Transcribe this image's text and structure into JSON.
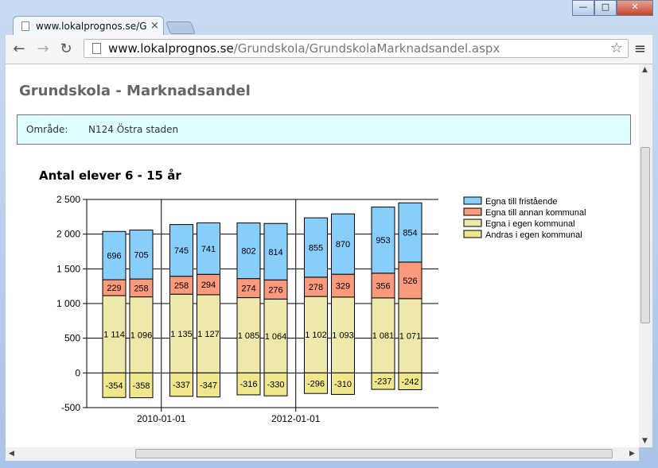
{
  "browser": {
    "tab_title": "www.lokalprognos.se/Gru",
    "tab_close": "×",
    "win_minimize": "—",
    "win_maximize": "□",
    "win_close": "✕",
    "back_icon": "←",
    "forward_icon": "→",
    "reload_icon": "↻",
    "url_host": "www.lokalprognos.se",
    "url_path": "/Grundskola/GrundskolaMarknadsandel.aspx",
    "star_icon": "☆",
    "menu_icon": "≡"
  },
  "page": {
    "title": "Grundskola - Marknadsandel",
    "area_label": "Område:",
    "area_value": "N124 Östra staden"
  },
  "chart_data": {
    "type": "bar",
    "stacked": true,
    "title": "Antal elever 6 - 15 år",
    "xlabel": "",
    "ylabel": "",
    "ylim": [
      -500,
      2500
    ],
    "yticks": [
      -500,
      0,
      500,
      1000,
      1500,
      2000,
      2500
    ],
    "ytick_labels": [
      "-500",
      "0",
      "500",
      "1 000",
      "1 500",
      "2 000",
      "2 500"
    ],
    "xtick_labels": [
      "2010-01-01",
      "2012-01-01"
    ],
    "grid": true,
    "legend_position": "right",
    "bar_count": 10,
    "series": [
      {
        "name": "Egna till fristående",
        "color": "#87cefa",
        "values": [
          696,
          705,
          745,
          741,
          802,
          814,
          855,
          870,
          953,
          854
        ]
      },
      {
        "name": "Egna till annan kommunal",
        "color": "#fa9a7d",
        "values": [
          229,
          258,
          258,
          294,
          274,
          276,
          278,
          329,
          356,
          526
        ]
      },
      {
        "name": "Egna i egen kommunal",
        "color": "#eee8aa",
        "values": [
          1114,
          1096,
          1135,
          1127,
          1085,
          1064,
          1102,
          1093,
          1081,
          1071
        ]
      },
      {
        "name": "Andras i egen kommunal",
        "color": "#f0e68c",
        "values": [
          -354,
          -358,
          -337,
          -347,
          -316,
          -330,
          -296,
          -310,
          -237,
          -242
        ]
      }
    ],
    "value_labels": {
      "Egna till fristående": [
        "696",
        "705",
        "745",
        "741",
        "802",
        "814",
        "855",
        "870",
        "953",
        "854"
      ],
      "Egna till annan kommunal": [
        "229",
        "258",
        "258",
        "294",
        "274",
        "276",
        "278",
        "329",
        "356",
        "526"
      ],
      "Egna i egen kommunal": [
        "1 114",
        "1 096",
        "1 135",
        "1 127",
        "1 085",
        "1 064",
        "1 102",
        "1 093",
        "1 081",
        "1 071"
      ],
      "Andras i egen kommunal": [
        "-354",
        "-358",
        "-337",
        "-347",
        "-316",
        "-330",
        "-296",
        "-310",
        "-237",
        "-242"
      ]
    }
  }
}
